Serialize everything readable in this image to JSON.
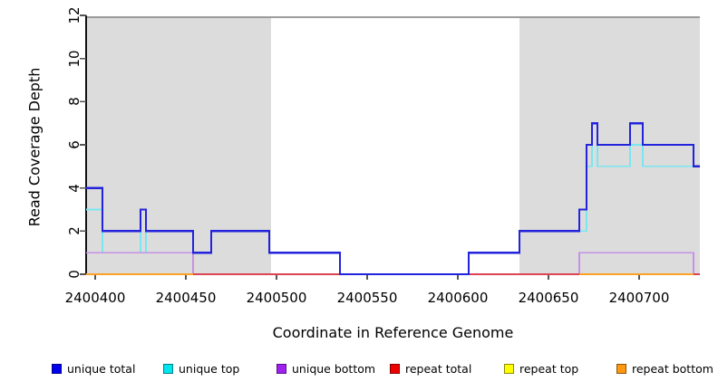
{
  "chart_data": {
    "type": "line",
    "subtype": "step-coverage",
    "title": "",
    "xlabel": "Coordinate in Reference Genome",
    "ylabel": "Read Coverage Depth",
    "xlim": [
      2400395,
      2400733.5
    ],
    "ylim": [
      0,
      12
    ],
    "grid": false,
    "legend_position": "bottom",
    "xticks": [
      2400400,
      2400450,
      2400500,
      2400550,
      2400600,
      2400650,
      2400700
    ],
    "xtick_labels": [
      "2400400",
      "2400450",
      "2400500",
      "2400550",
      "2400600",
      "2400650",
      "2400700"
    ],
    "yticks": [
      0,
      2,
      4,
      6,
      8,
      10,
      12
    ],
    "ytick_labels": [
      "0",
      "2",
      "4",
      "6",
      "8",
      "10",
      "12"
    ],
    "shaded_regions": [
      [
        2400395,
        2400497
      ],
      [
        2400634,
        2400733.5
      ]
    ],
    "series": [
      {
        "id": "unique_total",
        "label": "unique total",
        "legend_color": "#0000EE",
        "line_color": "#2323DC",
        "line_width": 2.2,
        "segments": [
          {
            "steps": [
              [
                2400395,
                4
              ],
              [
                2400404,
                2
              ],
              [
                2400425,
                3
              ],
              [
                2400428,
                2
              ],
              [
                2400454,
                1
              ],
              [
                2400464,
                2
              ],
              [
                2400496,
                1
              ],
              [
                2400535,
                0
              ],
              [
                2400606,
                1
              ],
              [
                2400634,
                2
              ],
              [
                2400667,
                3
              ],
              [
                2400671,
                6
              ],
              [
                2400674,
                7
              ],
              [
                2400677,
                6
              ],
              [
                2400695,
                7
              ],
              [
                2400702,
                6
              ],
              [
                2400730,
                5
              ]
            ],
            "end": 2400733.5
          }
        ]
      },
      {
        "id": "unique_top",
        "label": "unique top",
        "legend_color": "#00E5EE",
        "line_color": "#7AE6EF",
        "line_width": 1.6,
        "segments": [
          {
            "steps": [
              [
                2400395,
                3
              ],
              [
                2400404,
                1
              ],
              [
                2400425,
                3
              ],
              [
                2400428,
                1
              ],
              [
                2400464,
                2
              ],
              [
                2400496,
                1
              ],
              [
                2400535,
                0
              ],
              [
                2400606,
                1
              ],
              [
                2400634,
                2
              ],
              [
                2400671,
                5
              ],
              [
                2400674,
                7
              ],
              [
                2400677,
                5
              ],
              [
                2400695,
                6
              ],
              [
                2400702,
                5
              ]
            ],
            "end": 2400733.5
          }
        ]
      },
      {
        "id": "unique_bottom",
        "label": "unique bottom",
        "legend_color": "#A020F0",
        "line_color": "#C592E4",
        "line_width": 1.6,
        "segments": [
          {
            "steps": [
              [
                2400395,
                1
              ],
              [
                2400454,
                0
              ],
              [
                2400667,
                1
              ],
              [
                2400730,
                0
              ]
            ],
            "end": 2400733.5
          }
        ]
      },
      {
        "id": "repeat_total",
        "label": "repeat total",
        "legend_color": "#EE0000",
        "line_color": "#DC4455",
        "line_width": 1.6,
        "segments": [
          {
            "steps": [
              [
                2400395,
                0
              ]
            ],
            "end": 2400733.5
          }
        ]
      },
      {
        "id": "repeat_top",
        "label": "repeat top",
        "legend_color": "#FFFF00",
        "line_color": "#FFFF33",
        "line_width": 1.6,
        "segments": [
          {
            "steps": [
              [
                2400395,
                0
              ]
            ],
            "end": 2400454
          },
          {
            "steps": [
              [
                2400667,
                0
              ]
            ],
            "end": 2400730
          }
        ]
      },
      {
        "id": "repeat_bottom",
        "label": "repeat bottom",
        "legend_color": "#FF9912",
        "line_color": "#FFA126",
        "line_width": 2.2,
        "segments": [
          {
            "steps": [
              [
                2400395,
                0
              ]
            ],
            "end": 2400454
          },
          {
            "steps": [
              [
                2400667,
                0
              ]
            ],
            "end": 2400730
          }
        ]
      }
    ],
    "draw_order": [
      "unique_top",
      "unique_bottom",
      "repeat_top",
      "repeat_total",
      "repeat_bottom",
      "unique_total"
    ],
    "colors": {
      "background": "#FFFFFF",
      "shaded_region": "#DCDCDC",
      "axis": "#111111",
      "top_border": "#8E8E8E",
      "tick": "#555555"
    }
  }
}
